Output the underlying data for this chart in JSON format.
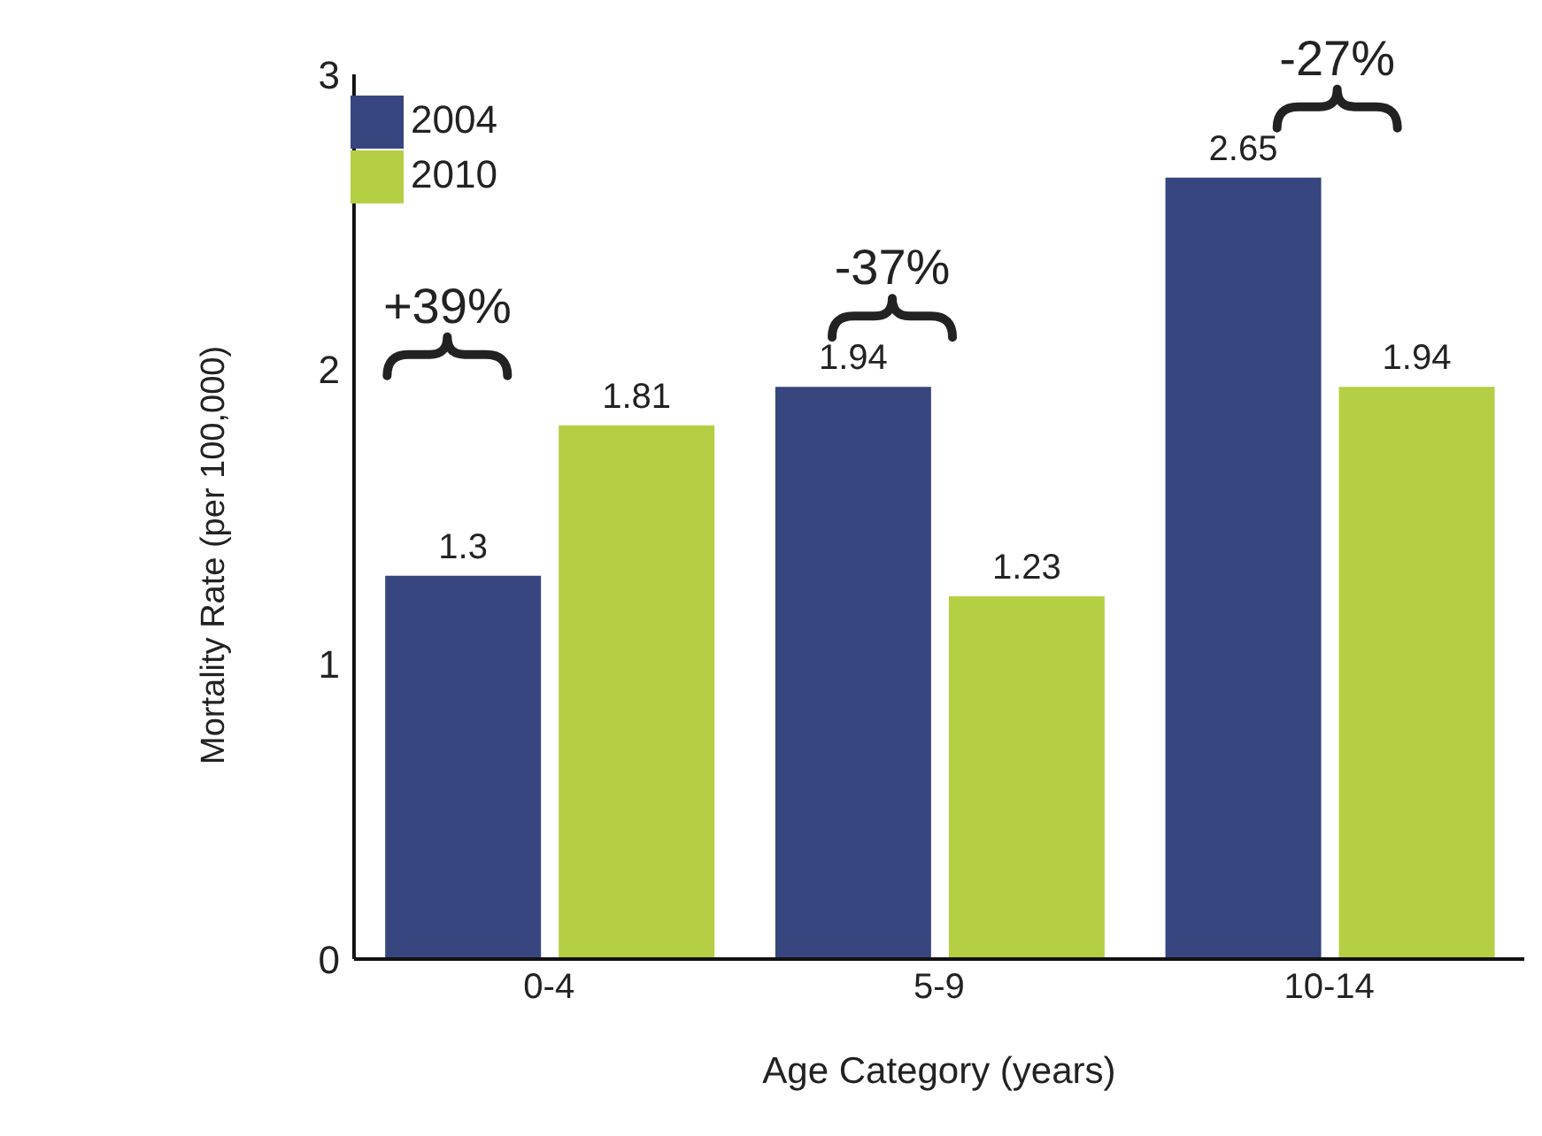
{
  "chart_data": {
    "type": "bar",
    "xlabel": "Age Category (years)",
    "ylabel": "Mortality Rate (per 100,000)",
    "categories": [
      "0-4",
      "5-9",
      "10-14"
    ],
    "series": [
      {
        "name": "2004",
        "color": "#37467f",
        "values": [
          1.3,
          1.94,
          2.65
        ]
      },
      {
        "name": "2010",
        "color": "#b5cf45",
        "values": [
          1.81,
          1.23,
          1.94
        ]
      }
    ],
    "ylim": [
      0,
      3
    ],
    "yticks": [
      0,
      1,
      2,
      3
    ],
    "grid": false,
    "legend": "top left",
    "data_labels": true,
    "annotations": [
      "+39%",
      "-37%",
      "-27%"
    ]
  }
}
